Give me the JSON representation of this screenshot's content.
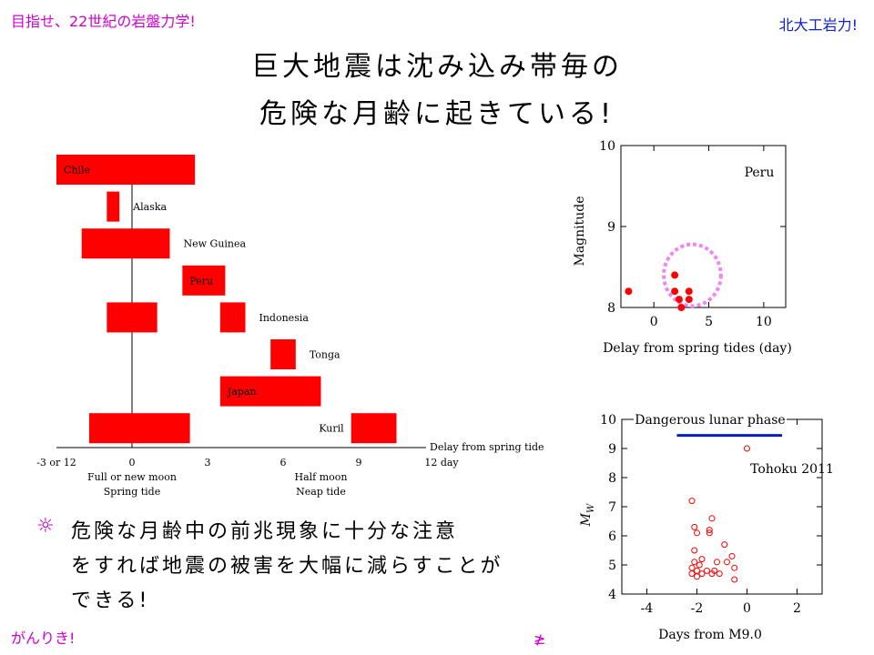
{
  "header": {
    "top_left": "目指せ、22世紀の岩盤力学!",
    "top_right": "北大工岩力!",
    "bottom_left": "がんりき!",
    "bottom_mid": "≱"
  },
  "title": {
    "line1": "巨大地震は沈み込み帯毎の",
    "line2": "危険な月齢に起きている!"
  },
  "note": {
    "bullet": "☼",
    "line1": "危険な月齢中の前兆現象に十分な注意",
    "line2": "をすれば地震の被害を大幅に減らすことが",
    "line3": "できる!"
  },
  "colors": {
    "bar": "#ff0000",
    "circle": "#ee88ee",
    "band": "#0020c0",
    "title": "#000000"
  },
  "chart_data": [
    {
      "type": "bar",
      "orientation": "horizontal-range",
      "xlabel": "Delay from spring tide",
      "xlim": [
        -3,
        12
      ],
      "x_ticks": [
        {
          "value": -3,
          "label": "-3 or 12"
        },
        {
          "value": 0,
          "label": "0"
        },
        {
          "value": 3,
          "label": "3"
        },
        {
          "value": 6,
          "label": "6"
        },
        {
          "value": 9,
          "label": "9"
        },
        {
          "value": 12,
          "label": "12 day"
        }
      ],
      "x_notes": [
        {
          "value": 0,
          "line1": "Full or new moon",
          "line2": "Spring tide"
        },
        {
          "value": 7.5,
          "line1": "Half moon",
          "line2": "Neap tide"
        }
      ],
      "rows": [
        {
          "name": "Chile",
          "label_pos": "inside",
          "ranges": [
            [
              -3,
              2.5
            ]
          ]
        },
        {
          "name": "Alaska",
          "label_pos": "right",
          "ranges": [
            [
              -1,
              -0.5
            ]
          ]
        },
        {
          "name": "New Guinea",
          "label_pos": "right",
          "ranges": [
            [
              -2,
              1.5
            ]
          ]
        },
        {
          "name": "Peru",
          "label_pos": "inside",
          "ranges": [
            [
              2,
              3.7
            ]
          ]
        },
        {
          "name": "Indonesia",
          "label_pos": "right",
          "ranges": [
            [
              -1,
              1
            ],
            [
              3.5,
              4.5
            ]
          ]
        },
        {
          "name": "Tonga",
          "label_pos": "right",
          "ranges": [
            [
              5.5,
              6.5
            ]
          ]
        },
        {
          "name": "Japan",
          "label_pos": "inside",
          "ranges": [
            [
              3.5,
              7.5
            ]
          ]
        },
        {
          "name": "Kuril",
          "label_pos": "left",
          "ranges": [
            [
              -1.7,
              2.3
            ],
            [
              8.7,
              10.5
            ]
          ]
        }
      ]
    },
    {
      "type": "scatter",
      "annotation": "Peru",
      "xlabel": "Delay from spring tides (day)",
      "ylabel": "Magnitude",
      "xlim": [
        -3,
        12
      ],
      "ylim": [
        8,
        10
      ],
      "x_ticks": [
        0,
        5,
        10
      ],
      "y_ticks": [
        8,
        9,
        10
      ],
      "points": [
        {
          "x": -2.3,
          "y": 8.2
        },
        {
          "x": 1.9,
          "y": 8.4
        },
        {
          "x": 1.9,
          "y": 8.2
        },
        {
          "x": 2.3,
          "y": 8.1
        },
        {
          "x": 2.5,
          "y": 8.0
        },
        {
          "x": 3.2,
          "y": 8.2
        },
        {
          "x": 3.2,
          "y": 8.1
        }
      ],
      "highlight_circle": {
        "x": 3.5,
        "y": 8.4,
        "rx": 2.6,
        "ry": 0.38
      }
    },
    {
      "type": "scatter",
      "annotation": "Tohoku 2011",
      "band_label": "Dangerous lunar phase",
      "band": {
        "x_start": -2.8,
        "x_end": 1.4,
        "y": 9.45
      },
      "xlabel": "Days from M9.0",
      "ylabel": "M_W",
      "ylabel_main": "M",
      "ylabel_sub": "W",
      "xlim": [
        -5,
        3
      ],
      "ylim": [
        4,
        10
      ],
      "x_ticks": [
        -4,
        -2,
        0,
        2
      ],
      "y_ticks": [
        4,
        5,
        6,
        7,
        8,
        9,
        10
      ],
      "points": [
        {
          "x": 0,
          "y": 9.0
        },
        {
          "x": -2.2,
          "y": 7.2
        },
        {
          "x": -2.1,
          "y": 6.3
        },
        {
          "x": -2.0,
          "y": 6.1
        },
        {
          "x": -1.5,
          "y": 6.2
        },
        {
          "x": -1.4,
          "y": 6.6
        },
        {
          "x": -1.5,
          "y": 6.1
        },
        {
          "x": -2.1,
          "y": 5.5
        },
        {
          "x": -0.9,
          "y": 5.7
        },
        {
          "x": -0.6,
          "y": 5.3
        },
        {
          "x": -0.8,
          "y": 5.1
        },
        {
          "x": -1.2,
          "y": 5.1
        },
        {
          "x": -2.1,
          "y": 5.1
        },
        {
          "x": -1.9,
          "y": 5.0
        },
        {
          "x": -1.8,
          "y": 5.2
        },
        {
          "x": -2.2,
          "y": 4.9
        },
        {
          "x": -2.0,
          "y": 4.8
        },
        {
          "x": -1.8,
          "y": 4.7
        },
        {
          "x": -1.6,
          "y": 4.8
        },
        {
          "x": -1.4,
          "y": 4.7
        },
        {
          "x": -1.3,
          "y": 4.8
        },
        {
          "x": -1.1,
          "y": 4.7
        },
        {
          "x": -0.5,
          "y": 4.9
        },
        {
          "x": -0.5,
          "y": 4.5
        },
        {
          "x": -2.0,
          "y": 4.6
        },
        {
          "x": -2.2,
          "y": 4.7
        }
      ]
    }
  ]
}
